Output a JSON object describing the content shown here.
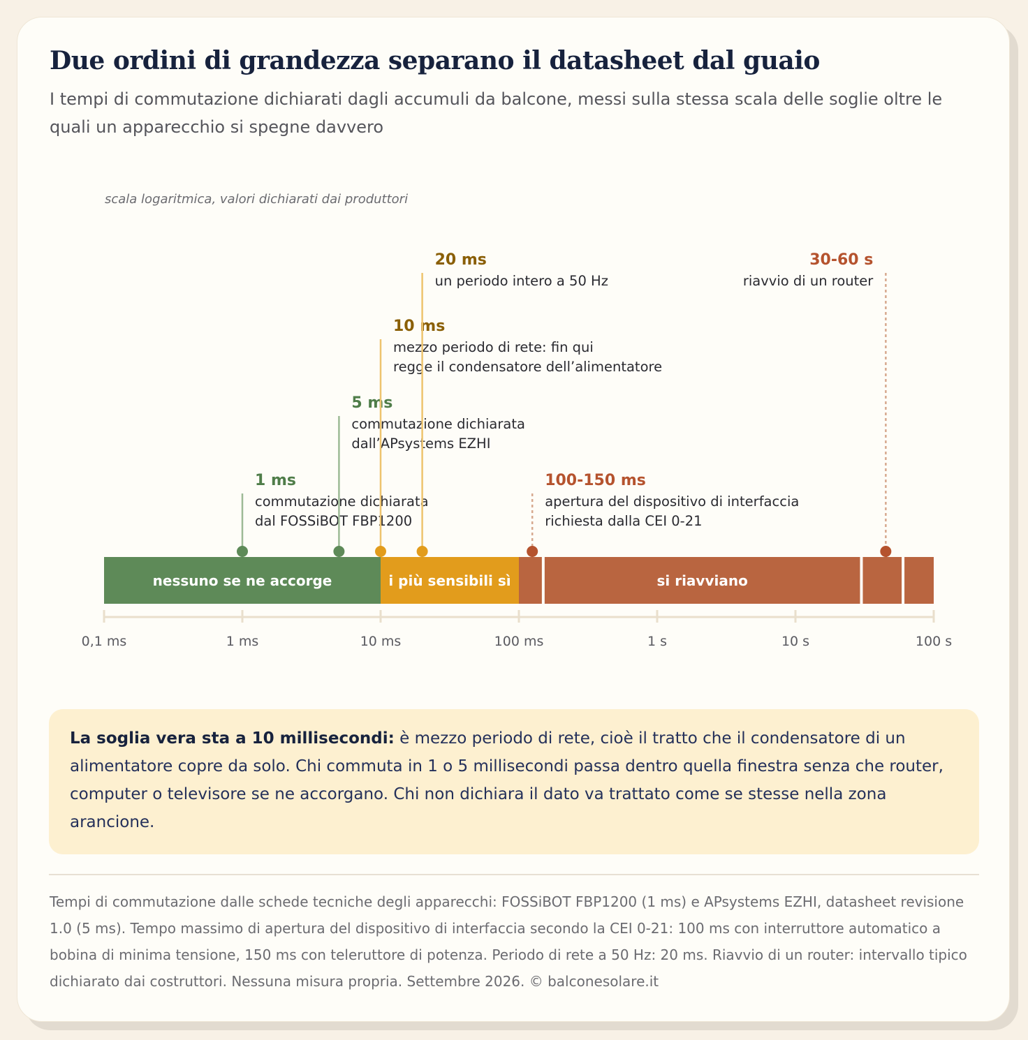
{
  "title": "Due ordini di grandezza separano il datasheet dal guaio",
  "subtitle": "I tempi di commutazione dichiarati dagli accumuli da balcone, messi sulla stessa scala delle soglie oltre le quali un apparecchio si spegne davvero",
  "chart_data": {
    "type": "timeline",
    "scale": "log",
    "note": "scala logaritmica, valori dichiarati dai produttori",
    "axis": {
      "unit": "ms",
      "range": [
        0.1,
        100000
      ],
      "ticks": [
        {
          "value": 0.1,
          "label": "0,1 ms"
        },
        {
          "value": 1,
          "label": "1 ms"
        },
        {
          "value": 10,
          "label": "10 ms"
        },
        {
          "value": 100,
          "label": "100 ms"
        },
        {
          "value": 1000,
          "label": "1 s"
        },
        {
          "value": 10000,
          "label": "10 s"
        },
        {
          "value": 100000,
          "label": "100 s"
        }
      ]
    },
    "zones": [
      {
        "label": "nessuno se ne accorge",
        "from": 0.1,
        "to": 10,
        "color": "#5e8a58"
      },
      {
        "label": "i più sensibili sì",
        "from": 10,
        "to": 100,
        "color": "#e29c1c"
      },
      {
        "label": "",
        "from": 100,
        "to": 150,
        "color": "#b96540"
      },
      {
        "label": "si riavviano",
        "from": 150,
        "to": 30000,
        "color": "#b96540"
      },
      {
        "label": "",
        "from": 30000,
        "to": 60000,
        "color": "#b96540"
      },
      {
        "label": "",
        "from": 60000,
        "to": 100000,
        "color": "#b96540"
      }
    ],
    "markers": [
      {
        "value": 1,
        "label": "1 ms",
        "desc": [
          "commutazione dichiarata",
          "dal FOSSiBOT FBP1200"
        ],
        "color": "#5e8a58",
        "text_color": "#4f7d49",
        "line_color": "#9dba96",
        "dashed": false,
        "align": "left"
      },
      {
        "value": 5,
        "label": "5 ms",
        "desc": [
          "commutazione dichiarata",
          "dall’APsystems EZHI"
        ],
        "color": "#5e8a58",
        "text_color": "#4f7d49",
        "line_color": "#9dba96",
        "dashed": false,
        "align": "left"
      },
      {
        "value": 10,
        "label": "10 ms",
        "desc": [
          "mezzo periodo di rete: fin qui",
          "regge il condensatore dell’alimentatore"
        ],
        "color": "#e29c1c",
        "text_color": "#8a5f06",
        "line_color": "#eec46e",
        "dashed": false,
        "align": "left"
      },
      {
        "value": 20,
        "label": "20 ms",
        "desc": [
          "un periodo intero a 50 Hz"
        ],
        "color": "#e29c1c",
        "text_color": "#8a5f06",
        "line_color": "#eec46e",
        "dashed": false,
        "align": "left"
      },
      {
        "value": 125,
        "label": "100-150 ms",
        "desc": [
          "apertura del dispositivo di interfaccia",
          "richiesta dalla CEI 0-21"
        ],
        "color": "#b5532e",
        "text_color": "#b5532e",
        "line_color": "#d7a98f",
        "dashed": true,
        "align": "left"
      },
      {
        "value": 45000,
        "label": "30-60 s",
        "desc": [
          "riavvio di un router"
        ],
        "color": "#b5532e",
        "text_color": "#b5532e",
        "line_color": "#d7a98f",
        "dashed": true,
        "align": "right"
      }
    ]
  },
  "callout": {
    "lead": "La soglia vera sta a 10 millisecondi:",
    "text": " è mezzo periodo di rete, cioè il tratto che il condensatore di un alimentatore copre da solo. Chi commuta in 1 o 5 millisecondi passa dentro quella finestra senza che router, computer o televisore se ne accorgano. Chi non dichiara il dato va trattato come se stesse nella zona arancione."
  },
  "source": "Tempi di commutazione dalle schede tecniche degli apparecchi: FOSSiBOT FBP1200 (1 ms) e APsystems EZHI, datasheet revisione 1.0 (5 ms). Tempo massimo di apertura del dispositivo di interfaccia secondo la CEI 0-21: 100 ms con interruttore automatico a bobina di minima tensione, 150 ms con teleruttore di potenza. Periodo di rete a 50 Hz: 20 ms. Riavvio di un router: intervallo tipico dichiarato dai costruttori. Nessuna misura propria. Settembre 2026. © balconesolare.it"
}
